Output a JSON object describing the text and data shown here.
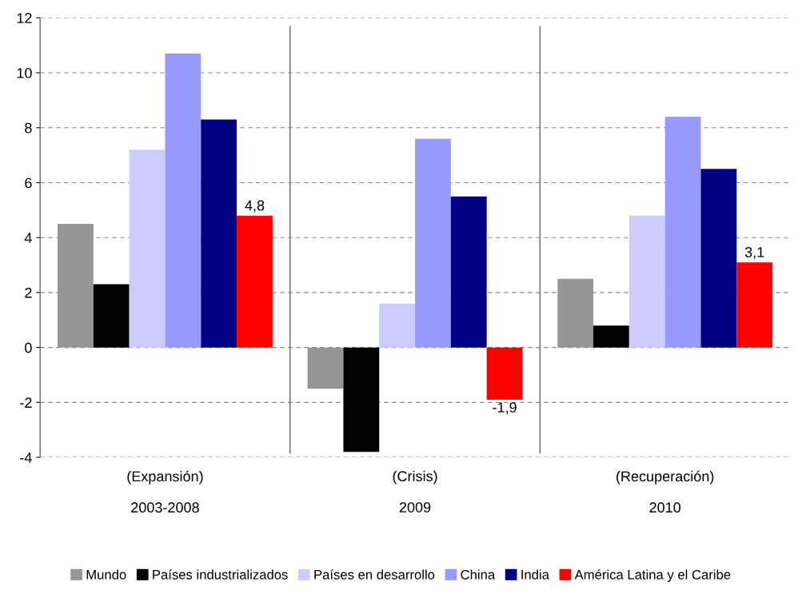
{
  "chart_data": {
    "type": "bar",
    "categories": [
      "(Expansión)\n\n2003-2008",
      "(Crisis)\n\n2009",
      "(Recuperación)\n\n2010"
    ],
    "series": [
      {
        "name": "Mundo",
        "color": "#969696",
        "values": [
          4.5,
          -1.5,
          2.5
        ]
      },
      {
        "name": "Países industrializados",
        "color": "#000000",
        "values": [
          2.3,
          -3.8,
          0.8
        ]
      },
      {
        "name": "Países en desarrollo",
        "color": "#ccccff",
        "values": [
          7.2,
          1.6,
          4.8
        ]
      },
      {
        "name": "China",
        "color": "#9999ff",
        "values": [
          10.7,
          7.6,
          8.4
        ]
      },
      {
        "name": "India",
        "color": "#000080",
        "values": [
          8.3,
          5.5,
          6.5
        ]
      },
      {
        "name": "América Latina y el Caribe",
        "color": "#ff0000",
        "values": [
          4.8,
          -1.9,
          3.1
        ],
        "value_labels": [
          "4,8",
          "-1,9",
          "3,1"
        ]
      }
    ],
    "ylim": [
      -4,
      12
    ],
    "yticks": [
      -4,
      -2,
      0,
      2,
      4,
      6,
      8,
      10,
      12
    ],
    "grid": "y",
    "legend": "bottom"
  }
}
